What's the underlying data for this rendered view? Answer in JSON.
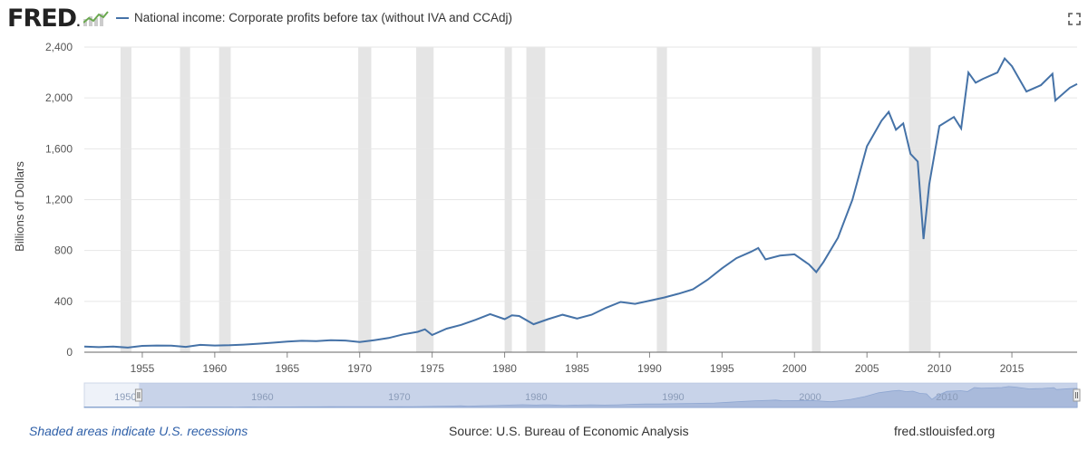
{
  "header": {
    "logo_text": "FRED",
    "logo_dot": ".",
    "legend_label": "National income: Corporate profits before tax (without IVA and CCAdj)"
  },
  "colors": {
    "series": "#4572a7",
    "recession": "#e5e5e5",
    "navigator_fill": "#c8d3e8",
    "navigator_mask": "#aab9dc"
  },
  "icons": {
    "expand": "expand-icon",
    "logo": "sparkline-logo-icon"
  },
  "footer": {
    "recession_note": "Shaded areas indicate U.S. recessions",
    "source": "Source: U.S. Bureau of Economic Analysis",
    "site": "fred.stlouisfed.org"
  },
  "chart_data": {
    "type": "line",
    "title": "National income: Corporate profits before tax (without IVA and CCAdj)",
    "xlabel": "",
    "ylabel": "Billions of Dollars",
    "xlim": [
      1951.0,
      2019.5
    ],
    "ylim": [
      0,
      2400
    ],
    "yticks": [
      0,
      400,
      800,
      1200,
      1600,
      2000,
      2400
    ],
    "ytick_labels": [
      "0",
      "400",
      "800",
      "1,200",
      "1,600",
      "2,000",
      "2,400"
    ],
    "xticks": [
      1955,
      1960,
      1965,
      1970,
      1975,
      1980,
      1985,
      1990,
      1995,
      2000,
      2005,
      2010,
      2015
    ],
    "grid": "horizontal",
    "recessions": [
      [
        1953.5,
        1954.25
      ],
      [
        1957.6,
        1958.3
      ],
      [
        1960.3,
        1961.1
      ],
      [
        1969.9,
        1970.8
      ],
      [
        1973.9,
        1975.1
      ],
      [
        1980.0,
        1980.5
      ],
      [
        1981.5,
        1982.8
      ],
      [
        1990.5,
        1991.2
      ],
      [
        2001.2,
        2001.8
      ],
      [
        2007.9,
        2009.4
      ]
    ],
    "navigator": {
      "xticks": [
        1950,
        1960,
        1970,
        1980,
        1990,
        2000,
        2010
      ],
      "xlim": [
        1947,
        2019.5
      ],
      "selected": [
        1951.0,
        2019.5
      ]
    },
    "series": [
      {
        "name": "National income: Corporate profits before tax (without IVA and CCAdj)",
        "x": [
          1951,
          1952,
          1953,
          1954,
          1955,
          1956,
          1957,
          1958,
          1959,
          1960,
          1961,
          1962,
          1963,
          1964,
          1965,
          1966,
          1967,
          1968,
          1969,
          1970,
          1971,
          1972,
          1973,
          1974,
          1974.5,
          1975,
          1976,
          1977,
          1978,
          1979,
          1980,
          1980.5,
          1981,
          1982,
          1983,
          1984,
          1985,
          1986,
          1987,
          1988,
          1989,
          1990,
          1991,
          1992,
          1993,
          1994,
          1995,
          1996,
          1997,
          1997.5,
          1998,
          1999,
          2000,
          2001,
          2001.5,
          2002,
          2003,
          2004,
          2005,
          2006,
          2006.5,
          2007,
          2007.5,
          2008,
          2008.5,
          2008.9,
          2009.3,
          2010,
          2011,
          2011.5,
          2012,
          2012.5,
          2013,
          2014,
          2014.5,
          2015,
          2016,
          2017,
          2017.8,
          2018,
          2019,
          2019.5
        ],
        "y": [
          45,
          40,
          44,
          36,
          50,
          53,
          52,
          42,
          58,
          53,
          55,
          60,
          67,
          75,
          84,
          90,
          87,
          95,
          92,
          80,
          95,
          112,
          140,
          160,
          180,
          135,
          185,
          215,
          255,
          300,
          260,
          290,
          285,
          220,
          260,
          295,
          265,
          295,
          350,
          395,
          380,
          405,
          430,
          460,
          495,
          570,
          660,
          740,
          790,
          820,
          730,
          760,
          770,
          690,
          630,
          710,
          900,
          1200,
          1620,
          1820,
          1890,
          1750,
          1800,
          1560,
          1500,
          890,
          1320,
          1780,
          1850,
          1760,
          2200,
          2120,
          2150,
          2200,
          2310,
          2250,
          2050,
          2100,
          2190,
          1980,
          2080,
          2110
        ]
      }
    ]
  }
}
